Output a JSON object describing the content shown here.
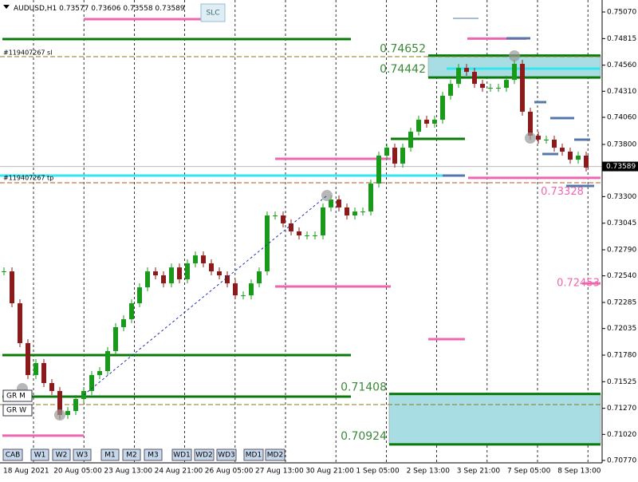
{
  "chart_data": {
    "type": "candlestick",
    "symbol": "AUDUSD,H1",
    "ohlc": [
      0.73577,
      0.73606,
      0.73558,
      0.73589
    ],
    "current_price": 0.73589,
    "ylim": [
      0.70747,
      0.75185
    ],
    "yticks": [
      {
        "value": 0.7507,
        "label": "0.75070"
      },
      0.74815,
      {
        "value": 0.7456,
        "label": "0.74560"
      },
      {
        "value": 0.7431,
        "label": "0.74310"
      },
      {
        "value": 0.7406,
        "label": "0.74060"
      },
      {
        "value": 0.738,
        "label": "0.73800"
      },
      {
        "value": 0.733,
        "label": "0.73300"
      },
      0.73045,
      {
        "value": 0.7279,
        "label": "0.72790"
      },
      {
        "value": 0.7254,
        "label": "0.72540"
      },
      0.72285,
      0.72035,
      {
        "value": 0.7178,
        "label": "0.71780"
      },
      0.71525,
      {
        "value": 0.7127,
        "label": "0.71270"
      },
      {
        "value": 0.7102,
        "label": "0.71020"
      },
      {
        "value": 0.7077,
        "label": "0.70770"
      }
    ],
    "time_labels": [
      "18 Aug 2021",
      "20 Aug 05:00",
      "23 Aug 13:00",
      "24 Aug 21:00",
      "26 Aug 05:00",
      "27 Aug 13:00",
      "30 Aug 21:00",
      "1 Sep 05:00",
      "2 Sep 13:00",
      "3 Sep 21:00",
      "7 Sep 05:00",
      "8 Sep 13:00"
    ],
    "closes": [
      0.72583,
      0.72277,
      0.71895,
      0.71589,
      0.71704,
      0.71512,
      0.71436,
      0.71206,
      0.71244,
      0.71359,
      0.71436,
      0.71589,
      0.71627,
      0.71819,
      0.72048,
      0.72124,
      0.72277,
      0.7243,
      0.72583,
      0.72545,
      0.72468,
      0.72621,
      0.72507,
      0.7266,
      0.72736,
      0.7266,
      0.72583,
      0.72545,
      0.72468,
      0.72353,
      0.72353,
      0.72468,
      0.72583,
      0.73119,
      0.73119,
      0.73043,
      0.72966,
      0.72928,
      0.72928,
      0.72928,
      0.73196,
      0.73272,
      0.73196,
      0.73119,
      0.73157,
      0.73157,
      0.73425,
      0.73693,
      0.73769,
      0.73616,
      0.73769,
      0.73922,
      0.74037,
      0.73999,
      0.74037,
      0.74267,
      0.74381,
      0.74534,
      0.74496,
      0.74381,
      0.74343,
      0.74343,
      0.74343,
      0.74419,
      0.74573,
      0.74114,
      0.73884,
      0.73846,
      0.73846,
      0.73769,
      0.73731,
      0.73654,
      0.73693,
      0.73578
    ],
    "up_color": "#1a9a1a",
    "down_color": "#8b1a1a",
    "levels": [
      {
        "price": 0.7481,
        "color": "#0a7a0a"
      },
      {
        "price": 0.74642,
        "color": "#8b7a1a",
        "dashed": true
      },
      {
        "price": 0.73502,
        "color": "#33e6f0"
      },
      {
        "price": 0.74527,
        "color": "#33e6f0"
      },
      {
        "price": 0.73854,
        "color": "#0a7a0a"
      },
      {
        "price": 0.75001,
        "color": "#ee66b0"
      },
      {
        "price": 0.74815,
        "color": "#ee66b0"
      },
      {
        "price": 0.73662,
        "color": "#ee66b0"
      },
      {
        "price": 0.7348,
        "color": "#ee66b0"
      },
      {
        "price": 0.72438,
        "color": "#ee66b0"
      },
      {
        "price": 0.71933,
        "color": "#ee66b0"
      },
      {
        "price": 0.71008,
        "color": "#ee66b0"
      },
      {
        "price": 0.72468,
        "color": "#ee66b0"
      },
      {
        "price": 0.7178,
        "color": "#0a7a0a"
      },
      {
        "price": 0.71382,
        "color": "#0a7a0a"
      },
      {
        "price": 0.73433,
        "color": "#b05a2a",
        "dashed": true
      },
      {
        "price": 0.71306,
        "color": "#8b7a1a",
        "dashed": true
      }
    ],
    "zones": [
      {
        "top": 0.74652,
        "bottom": 0.74442,
        "color": "#a8dde4",
        "edge": "#0a7a0a"
      },
      {
        "top": 0.71408,
        "bottom": 0.70924,
        "color": "#a8dde4",
        "edge": "#0a7a0a"
      }
    ],
    "price_labels": [
      0.73328,
      0.72453
    ],
    "order_labels": [
      "#119407267 sl",
      "#119407267 tp"
    ],
    "group_labels": [
      "GR M",
      "GR W"
    ],
    "slc_button": "SLC",
    "buttons": [
      "CAB",
      "W1",
      "W2",
      "W3",
      "M1",
      "M2",
      "M3",
      "WD1",
      "WD2",
      "WD3",
      "MD1",
      "MD2"
    ]
  }
}
